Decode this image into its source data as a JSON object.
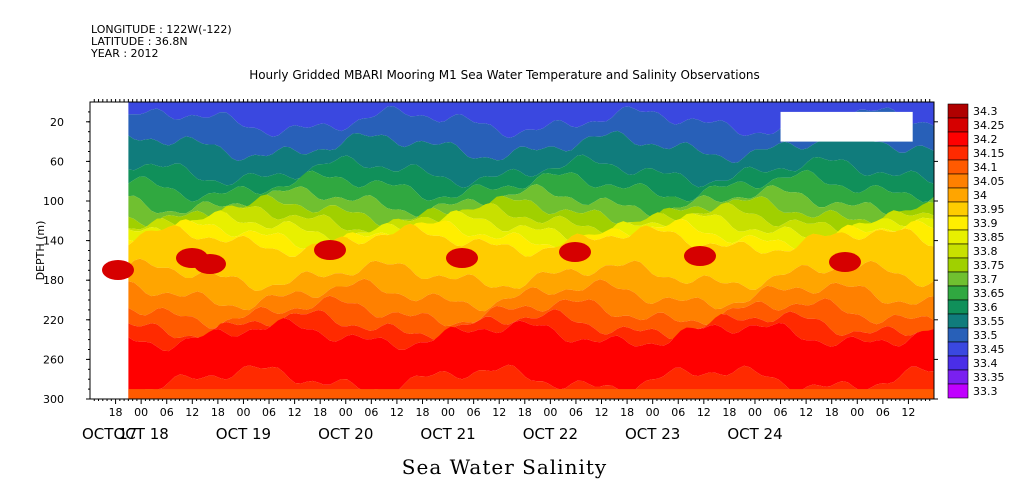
{
  "header": {
    "longitude": "LONGITUDE : 122W(-122)",
    "latitude": "LATITUDE : 36.8N",
    "year": "YEAR : 2012"
  },
  "chart_data": {
    "type": "heatmap",
    "title": "Hourly Gridded MBARI Mooring M1 Sea Water Temperature and Salinity Observations",
    "xlabel": "Sea Water Salinity",
    "ylabel": "DEPTH (m)",
    "ylim": [
      300,
      0
    ],
    "y_ticks": [
      "20",
      "60",
      "100",
      "140",
      "180",
      "220",
      "260",
      "300"
    ],
    "hour_ticks": [
      "18",
      "00",
      "06",
      "12",
      "18",
      "00",
      "06",
      "12",
      "18",
      "00",
      "06",
      "12",
      "18",
      "00",
      "06",
      "12",
      "18",
      "00",
      "06",
      "12",
      "18",
      "00",
      "06",
      "12",
      "18",
      "00",
      "06",
      "12",
      "18",
      "00",
      "06",
      "12"
    ],
    "day_ticks": [
      "OCT 17",
      "OCT 18",
      "OCT 19",
      "OCT 20",
      "OCT 21",
      "OCT 22",
      "OCT 23",
      "OCT 24"
    ],
    "time_range_hours_from_oct17_00": [
      12,
      210
    ],
    "data_start_hour": 21,
    "levels": [
      "34.3",
      "34.25",
      "34.2",
      "34.15",
      "34.1",
      "34.05",
      "34",
      "33.95",
      "33.9",
      "33.85",
      "33.8",
      "33.75",
      "33.7",
      "33.65",
      "33.6",
      "33.55",
      "33.5",
      "33.45",
      "33.4",
      "33.35",
      "33.3"
    ],
    "level_colors": [
      "#b00000",
      "#d60000",
      "#ff0000",
      "#ff2a00",
      "#ff5a00",
      "#ff8000",
      "#ffa500",
      "#ffcc00",
      "#ffee00",
      "#e8f000",
      "#c8e000",
      "#a0d000",
      "#70c030",
      "#30a840",
      "#10905a",
      "#107c7c",
      "#2860b8",
      "#3a48e0",
      "#4a2ee8",
      "#7a20f0",
      "#c000ff"
    ],
    "layers": [
      {
        "level": "33.45",
        "depth": 20
      },
      {
        "level": "33.5",
        "depth": 45
      },
      {
        "level": "33.55",
        "depth": 70
      },
      {
        "level": "33.6",
        "depth": 85
      },
      {
        "level": "33.65",
        "depth": 100
      },
      {
        "level": "33.7",
        "depth": 110
      },
      {
        "level": "33.75",
        "depth": 118
      },
      {
        "level": "33.8",
        "depth": 126
      },
      {
        "level": "33.85",
        "depth": 134
      },
      {
        "level": "33.9",
        "depth": 140
      },
      {
        "level": "33.95",
        "depth": 175
      },
      {
        "level": "34",
        "depth": 195
      },
      {
        "level": "34.05",
        "depth": 212
      },
      {
        "level": "34.1",
        "depth": 225
      },
      {
        "level": "34.15",
        "depth": 235
      },
      {
        "level": "34.2",
        "depth": 280
      },
      {
        "level": "34.15",
        "depth": 300
      }
    ],
    "missing_region": {
      "hour_start": 174,
      "hour_end": 205,
      "depth_start": 10,
      "depth_end": 40
    }
  },
  "footer": {
    "label": "Sea Water Salinity"
  }
}
